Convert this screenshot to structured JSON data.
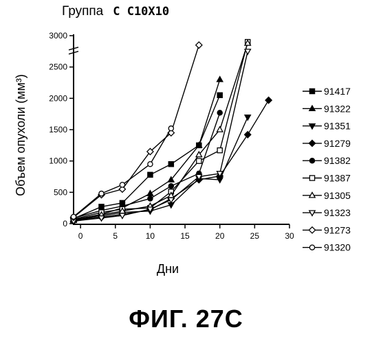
{
  "chart_data": {
    "type": "line",
    "title_prefix": "Группа",
    "title_group": "C C10X10",
    "xlabel": "Дни",
    "ylabel": "Объем опухоли (мм³)",
    "xlim": [
      -1,
      30
    ],
    "ylim": [
      0,
      3000
    ],
    "x_ticks": [
      0,
      5,
      10,
      15,
      20,
      25,
      30
    ],
    "y_ticks": [
      0,
      500,
      1000,
      1500,
      2000,
      2500,
      3000
    ],
    "y_tick_labels": [
      "0",
      "500",
      "1000",
      "1500",
      "2000",
      "2500",
      "3000"
    ],
    "y_axis_break": true,
    "series": [
      {
        "name": "91417",
        "marker": "square-filled",
        "points": [
          [
            -1,
            80
          ],
          [
            3,
            270
          ],
          [
            6,
            330
          ],
          [
            10,
            780
          ],
          [
            13,
            950
          ],
          [
            17,
            1250
          ],
          [
            20,
            2050
          ]
        ]
      },
      {
        "name": "91322",
        "marker": "triangle-filled",
        "points": [
          [
            -1,
            60
          ],
          [
            3,
            150
          ],
          [
            6,
            250
          ],
          [
            10,
            480
          ],
          [
            13,
            700
          ],
          [
            17,
            1250
          ],
          [
            20,
            2300
          ]
        ]
      },
      {
        "name": "91351",
        "marker": "triangle-down-filled",
        "points": [
          [
            -1,
            50
          ],
          [
            3,
            120
          ],
          [
            6,
            180
          ],
          [
            10,
            200
          ],
          [
            13,
            300
          ],
          [
            17,
            720
          ],
          [
            20,
            700
          ],
          [
            24,
            1700
          ]
        ]
      },
      {
        "name": "91279",
        "marker": "diamond-filled",
        "points": [
          [
            -1,
            40
          ],
          [
            3,
            100
          ],
          [
            6,
            150
          ],
          [
            10,
            220
          ],
          [
            13,
            400
          ],
          [
            17,
            700
          ],
          [
            20,
            760
          ],
          [
            24,
            1420
          ],
          [
            27,
            1970
          ]
        ]
      },
      {
        "name": "91382",
        "marker": "circle-filled",
        "points": [
          [
            -1,
            90
          ],
          [
            3,
            210
          ],
          [
            6,
            280
          ],
          [
            10,
            400
          ],
          [
            13,
            600
          ],
          [
            17,
            800
          ],
          [
            20,
            1770
          ]
        ]
      },
      {
        "name": "91387",
        "marker": "square-open",
        "points": [
          [
            -1,
            70
          ],
          [
            3,
            180
          ],
          [
            6,
            230
          ],
          [
            10,
            250
          ],
          [
            13,
            510
          ],
          [
            17,
            1000
          ],
          [
            20,
            1170
          ],
          [
            24,
            2900
          ]
        ]
      },
      {
        "name": "91305",
        "marker": "triangle-open",
        "points": [
          [
            -1,
            50
          ],
          [
            3,
            140
          ],
          [
            6,
            200
          ],
          [
            10,
            280
          ],
          [
            13,
            450
          ],
          [
            17,
            1100
          ],
          [
            20,
            1500
          ],
          [
            24,
            2880
          ]
        ]
      },
      {
        "name": "91323",
        "marker": "triangle-down-open",
        "points": [
          [
            -1,
            40
          ],
          [
            3,
            90
          ],
          [
            6,
            130
          ],
          [
            10,
            230
          ],
          [
            13,
            380
          ],
          [
            17,
            750
          ],
          [
            20,
            800
          ],
          [
            24,
            2750
          ]
        ]
      },
      {
        "name": "91273",
        "marker": "diamond-open",
        "points": [
          [
            -1,
            100
          ],
          [
            3,
            460
          ],
          [
            6,
            550
          ],
          [
            10,
            1150
          ],
          [
            13,
            1450
          ],
          [
            17,
            2850
          ]
        ]
      },
      {
        "name": "91320",
        "marker": "circle-open",
        "points": [
          [
            -1,
            110
          ],
          [
            3,
            480
          ],
          [
            6,
            620
          ],
          [
            10,
            950
          ],
          [
            13,
            1520
          ]
        ]
      }
    ]
  },
  "figure_label": "ФИГ. 27C"
}
